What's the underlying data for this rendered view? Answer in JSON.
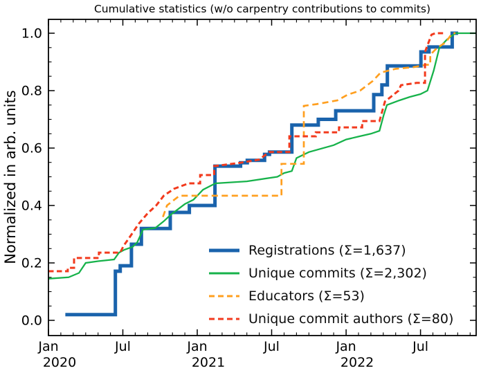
{
  "chart_data": {
    "type": "line",
    "title": "Cumulative statistics (w/o carpentry contributions to commits)",
    "xlabel": "",
    "ylabel": "Normalized in arb. units",
    "xlim": [
      "2020-01-01",
      "2022-11-15"
    ],
    "ylim": [
      -0.051,
      1.048
    ],
    "grid": false,
    "legend_position": "inside lower-right",
    "yticks": [
      0.0,
      0.2,
      0.4,
      0.6,
      0.8,
      1.0
    ],
    "ytick_labels": [
      "0.0",
      "0.2",
      "0.4",
      "0.6",
      "0.8",
      "1.0"
    ],
    "xticks": [
      {
        "date": "2020-01-01",
        "label": "Jan",
        "year": "2020"
      },
      {
        "date": "2020-07-01",
        "label": "Jul",
        "year": ""
      },
      {
        "date": "2021-01-01",
        "label": "Jan",
        "year": "2021"
      },
      {
        "date": "2021-07-01",
        "label": "Jul",
        "year": ""
      },
      {
        "date": "2022-01-01",
        "label": "Jan",
        "year": "2022"
      },
      {
        "date": "2022-07-01",
        "label": "Jul",
        "year": ""
      }
    ],
    "series": [
      {
        "name": "Registrations",
        "label": "Registrations  (Σ=1,637)",
        "total": "1,637",
        "color": "#1a63ac",
        "line_style": "solid",
        "line_width": 5,
        "interp": "step",
        "points": [
          [
            "2020-02-12",
            0.02
          ],
          [
            "2020-06-13",
            0.171
          ],
          [
            "2020-06-25",
            0.19
          ],
          [
            "2020-07-22",
            0.265
          ],
          [
            "2020-08-16",
            0.32
          ],
          [
            "2020-10-26",
            0.376
          ],
          [
            "2020-12-12",
            0.4
          ],
          [
            "2021-02-14",
            0.537
          ],
          [
            "2021-04-16",
            0.549
          ],
          [
            "2021-05-02",
            0.557
          ],
          [
            "2021-06-14",
            0.578
          ],
          [
            "2021-06-26",
            0.586
          ],
          [
            "2021-08-20",
            0.68
          ],
          [
            "2021-10-24",
            0.7
          ],
          [
            "2021-12-06",
            0.73
          ],
          [
            "2022-03-08",
            0.786
          ],
          [
            "2022-03-28",
            0.82
          ],
          [
            "2022-04-11",
            0.886
          ],
          [
            "2022-07-02",
            0.935
          ],
          [
            "2022-07-22",
            0.952
          ],
          [
            "2022-09-18",
            1.0
          ],
          [
            "2022-10-02",
            1.0
          ]
        ]
      },
      {
        "name": "Unique commits",
        "label": "Unique commits (Σ=2,302)",
        "total": "2,302",
        "color": "#16b24a",
        "line_style": "solid",
        "line_width": 2.3,
        "interp": "linear",
        "points": [
          [
            "2020-01-01",
            0.145
          ],
          [
            "2020-02-20",
            0.15
          ],
          [
            "2020-03-15",
            0.165
          ],
          [
            "2020-04-01",
            0.2
          ],
          [
            "2020-05-01",
            0.206
          ],
          [
            "2020-06-10",
            0.212
          ],
          [
            "2020-06-22",
            0.236
          ],
          [
            "2020-07-05",
            0.246
          ],
          [
            "2020-07-25",
            0.256
          ],
          [
            "2020-08-06",
            0.272
          ],
          [
            "2020-08-20",
            0.316
          ],
          [
            "2020-09-20",
            0.322
          ],
          [
            "2020-10-10",
            0.345
          ],
          [
            "2020-10-28",
            0.369
          ],
          [
            "2020-12-01",
            0.405
          ],
          [
            "2020-12-22",
            0.42
          ],
          [
            "2021-01-15",
            0.455
          ],
          [
            "2021-02-15",
            0.477
          ],
          [
            "2021-05-01",
            0.484
          ],
          [
            "2021-07-15",
            0.5
          ],
          [
            "2021-08-01",
            0.513
          ],
          [
            "2021-08-20",
            0.52
          ],
          [
            "2021-09-01",
            0.565
          ],
          [
            "2021-10-01",
            0.586
          ],
          [
            "2021-12-01",
            0.61
          ],
          [
            "2022-01-01",
            0.63
          ],
          [
            "2022-02-01",
            0.64
          ],
          [
            "2022-03-01",
            0.65
          ],
          [
            "2022-03-22",
            0.66
          ],
          [
            "2022-04-02",
            0.715
          ],
          [
            "2022-04-10",
            0.75
          ],
          [
            "2022-05-10",
            0.766
          ],
          [
            "2022-06-05",
            0.778
          ],
          [
            "2022-07-01",
            0.788
          ],
          [
            "2022-07-18",
            0.8
          ],
          [
            "2022-08-03",
            0.87
          ],
          [
            "2022-08-17",
            0.95
          ],
          [
            "2022-09-05",
            0.978
          ],
          [
            "2022-09-26",
            1.0
          ],
          [
            "2022-11-15",
            1.0
          ]
        ]
      },
      {
        "name": "Educators",
        "label": "Educators (Σ=53)",
        "total": "53",
        "color": "#ff9f1f",
        "line_style": "dashed",
        "line_width": 2.7,
        "dash": [
          9,
          5.5
        ],
        "interp": "linear",
        "points": [
          [
            "2020-10-08",
            0.36
          ],
          [
            "2020-10-18",
            0.4
          ],
          [
            "2020-11-18",
            0.434
          ],
          [
            "2021-07-25",
            0.434
          ],
          [
            "2021-07-25",
            0.545
          ],
          [
            "2021-09-19",
            0.545
          ],
          [
            "2021-09-19",
            0.747
          ],
          [
            "2021-10-20",
            0.753
          ],
          [
            "2021-12-10",
            0.766
          ],
          [
            "2022-01-05",
            0.786
          ],
          [
            "2022-02-05",
            0.8
          ],
          [
            "2022-03-05",
            0.833
          ],
          [
            "2022-03-25",
            0.863
          ],
          [
            "2022-05-01",
            0.876
          ],
          [
            "2022-06-15",
            0.882
          ],
          [
            "2022-07-15",
            0.89
          ],
          [
            "2022-07-25",
            0.89
          ],
          [
            "2022-07-25",
            0.925
          ],
          [
            "2022-08-12",
            0.95
          ],
          [
            "2022-09-02",
            0.968
          ],
          [
            "2022-09-18",
            1.0
          ],
          [
            "2022-09-26",
            1.0
          ]
        ]
      },
      {
        "name": "Unique commit authors",
        "label": "Unique commit authors (Σ=80)",
        "total": "80",
        "color": "#f23a1d",
        "line_style": "dashed",
        "line_width": 3,
        "dash": [
          7.5,
          4.5
        ],
        "interp": "linear",
        "points": [
          [
            "2020-01-01",
            0.171
          ],
          [
            "2020-02-18",
            0.171
          ],
          [
            "2020-02-18",
            0.183
          ],
          [
            "2020-03-03",
            0.183
          ],
          [
            "2020-03-03",
            0.217
          ],
          [
            "2020-05-03",
            0.217
          ],
          [
            "2020-05-03",
            0.236
          ],
          [
            "2020-06-25",
            0.236
          ],
          [
            "2020-07-03",
            0.26
          ],
          [
            "2020-07-15",
            0.284
          ],
          [
            "2020-08-10",
            0.337
          ],
          [
            "2020-09-01",
            0.373
          ],
          [
            "2020-09-22",
            0.4
          ],
          [
            "2020-10-10",
            0.434
          ],
          [
            "2020-11-05",
            0.458
          ],
          [
            "2020-12-10",
            0.477
          ],
          [
            "2021-01-08",
            0.477
          ],
          [
            "2021-01-08",
            0.506
          ],
          [
            "2021-02-12",
            0.506
          ],
          [
            "2021-02-12",
            0.537
          ],
          [
            "2021-04-16",
            0.549
          ],
          [
            "2021-06-01",
            0.56
          ],
          [
            "2021-06-25",
            0.586
          ],
          [
            "2021-08-14",
            0.586
          ],
          [
            "2021-08-14",
            0.641
          ],
          [
            "2021-10-18",
            0.641
          ],
          [
            "2021-10-18",
            0.655
          ],
          [
            "2021-12-14",
            0.655
          ],
          [
            "2021-12-14",
            0.672
          ],
          [
            "2022-02-10",
            0.672
          ],
          [
            "2022-02-10",
            0.694
          ],
          [
            "2022-03-22",
            0.694
          ],
          [
            "2022-04-05",
            0.762
          ],
          [
            "2022-05-08",
            0.8
          ],
          [
            "2022-05-14",
            0.819
          ],
          [
            "2022-06-22",
            0.827
          ],
          [
            "2022-07-12",
            0.827
          ],
          [
            "2022-07-12",
            0.935
          ],
          [
            "2022-07-28",
            0.995
          ],
          [
            "2022-08-07",
            1.0
          ],
          [
            "2022-08-30",
            1.0
          ]
        ]
      }
    ]
  }
}
